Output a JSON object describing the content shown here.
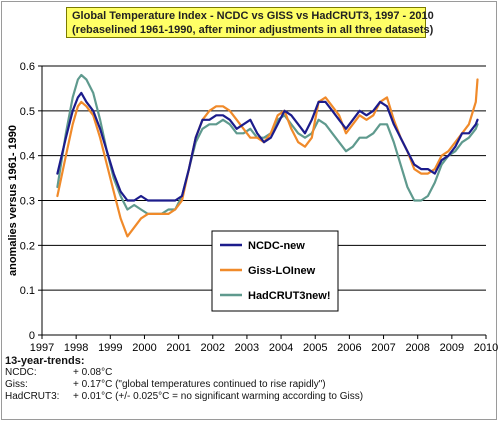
{
  "chart_data": {
    "type": "line",
    "title": "Global Temperature Index - NCDC vs GISS vs HadCRUT3, 1997 -  2010",
    "subtitle": "(rebaselined 1961-1990, after minor adjustments in all three datasets)",
    "xlabel": "",
    "ylabel": "anomalies versus 1961- 1990",
    "xlim": [
      1997,
      2010
    ],
    "ylim": [
      0,
      0.6
    ],
    "x_ticks": [
      "1997",
      "1998",
      "1999",
      "2000",
      "2001",
      "2002",
      "2003",
      "2004",
      "2005",
      "2006",
      "2007",
      "2008",
      "2009",
      "2010"
    ],
    "y_ticks": [
      "0",
      "0.1",
      "0.2",
      "0.3",
      "0.4",
      "0.5",
      "0.6"
    ],
    "grid": "horizontal",
    "legend_position": "center-right",
    "series": [
      {
        "name": "NCDC-new",
        "color": "#1c1c8c",
        "x": [
          1997.45,
          1997.7,
          1997.9,
          1998.05,
          1998.15,
          1998.3,
          1998.5,
          1998.7,
          1998.9,
          1999.1,
          1999.3,
          1999.5,
          1999.7,
          1999.9,
          2000.1,
          2000.3,
          2000.5,
          2000.7,
          2000.9,
          2001.1,
          2001.3,
          2001.5,
          2001.7,
          2001.9,
          2002.1,
          2002.3,
          2002.5,
          2002.7,
          2002.9,
          2003.1,
          2003.3,
          2003.5,
          2003.7,
          2003.9,
          2004.1,
          2004.3,
          2004.5,
          2004.7,
          2004.9,
          2005.1,
          2005.3,
          2005.5,
          2005.7,
          2005.9,
          2006.1,
          2006.3,
          2006.5,
          2006.7,
          2006.9,
          2007.1,
          2007.3,
          2007.5,
          2007.7,
          2007.9,
          2008.1,
          2008.3,
          2008.5,
          2008.7,
          2008.9,
          2009.1,
          2009.3,
          2009.5,
          2009.7,
          2009.75
        ],
        "values": [
          0.36,
          0.44,
          0.5,
          0.53,
          0.54,
          0.52,
          0.5,
          0.46,
          0.41,
          0.36,
          0.32,
          0.3,
          0.3,
          0.31,
          0.3,
          0.3,
          0.3,
          0.3,
          0.3,
          0.31,
          0.37,
          0.44,
          0.48,
          0.48,
          0.49,
          0.49,
          0.48,
          0.46,
          0.47,
          0.48,
          0.45,
          0.43,
          0.44,
          0.47,
          0.5,
          0.49,
          0.47,
          0.45,
          0.48,
          0.52,
          0.52,
          0.5,
          0.48,
          0.46,
          0.48,
          0.5,
          0.49,
          0.5,
          0.52,
          0.51,
          0.47,
          0.44,
          0.41,
          0.38,
          0.37,
          0.37,
          0.36,
          0.39,
          0.4,
          0.42,
          0.45,
          0.45,
          0.47,
          0.48
        ]
      },
      {
        "name": "Giss-LOInew",
        "color": "#f08a2a",
        "x": [
          1997.45,
          1997.7,
          1997.9,
          1998.05,
          1998.15,
          1998.3,
          1998.5,
          1998.7,
          1998.9,
          1999.1,
          1999.3,
          1999.5,
          1999.7,
          1999.9,
          2000.1,
          2000.3,
          2000.5,
          2000.7,
          2000.9,
          2001.1,
          2001.3,
          2001.5,
          2001.7,
          2001.9,
          2002.1,
          2002.3,
          2002.5,
          2002.7,
          2002.9,
          2003.1,
          2003.3,
          2003.5,
          2003.7,
          2003.9,
          2004.1,
          2004.3,
          2004.5,
          2004.7,
          2004.9,
          2005.1,
          2005.3,
          2005.5,
          2005.7,
          2005.9,
          2006.1,
          2006.3,
          2006.5,
          2006.7,
          2006.9,
          2007.1,
          2007.3,
          2007.5,
          2007.7,
          2007.9,
          2008.1,
          2008.3,
          2008.5,
          2008.7,
          2008.9,
          2009.1,
          2009.3,
          2009.5,
          2009.7,
          2009.75
        ],
        "values": [
          0.31,
          0.4,
          0.47,
          0.51,
          0.52,
          0.51,
          0.49,
          0.44,
          0.38,
          0.32,
          0.26,
          0.22,
          0.24,
          0.26,
          0.27,
          0.27,
          0.27,
          0.27,
          0.28,
          0.3,
          0.37,
          0.44,
          0.48,
          0.5,
          0.51,
          0.51,
          0.5,
          0.48,
          0.46,
          0.44,
          0.44,
          0.43,
          0.45,
          0.49,
          0.5,
          0.46,
          0.43,
          0.42,
          0.44,
          0.52,
          0.53,
          0.51,
          0.49,
          0.45,
          0.47,
          0.49,
          0.48,
          0.49,
          0.52,
          0.53,
          0.48,
          0.44,
          0.41,
          0.37,
          0.36,
          0.36,
          0.37,
          0.4,
          0.41,
          0.43,
          0.45,
          0.47,
          0.52,
          0.57
        ]
      },
      {
        "name": "HadCRUT3new!",
        "color": "#5f9a8e",
        "x": [
          1997.45,
          1997.7,
          1997.9,
          1998.05,
          1998.15,
          1998.3,
          1998.5,
          1998.7,
          1998.9,
          1999.1,
          1999.3,
          1999.5,
          1999.7,
          1999.9,
          2000.1,
          2000.3,
          2000.5,
          2000.7,
          2000.9,
          2001.1,
          2001.3,
          2001.5,
          2001.7,
          2001.9,
          2002.1,
          2002.3,
          2002.5,
          2002.7,
          2002.9,
          2003.1,
          2003.3,
          2003.5,
          2003.7,
          2003.9,
          2004.1,
          2004.3,
          2004.5,
          2004.7,
          2004.9,
          2005.1,
          2005.3,
          2005.5,
          2005.7,
          2005.9,
          2006.1,
          2006.3,
          2006.5,
          2006.7,
          2006.9,
          2007.1,
          2007.3,
          2007.5,
          2007.7,
          2007.9,
          2008.1,
          2008.3,
          2008.5,
          2008.7,
          2008.9,
          2009.1,
          2009.3,
          2009.5,
          2009.7,
          2009.75
        ],
        "values": [
          0.33,
          0.45,
          0.53,
          0.57,
          0.58,
          0.57,
          0.54,
          0.48,
          0.41,
          0.35,
          0.31,
          0.28,
          0.29,
          0.28,
          0.27,
          0.27,
          0.27,
          0.28,
          0.28,
          0.31,
          0.37,
          0.43,
          0.46,
          0.47,
          0.47,
          0.48,
          0.47,
          0.45,
          0.45,
          0.46,
          0.44,
          0.44,
          0.45,
          0.48,
          0.49,
          0.47,
          0.45,
          0.44,
          0.45,
          0.48,
          0.47,
          0.45,
          0.43,
          0.41,
          0.42,
          0.44,
          0.44,
          0.45,
          0.47,
          0.47,
          0.43,
          0.38,
          0.33,
          0.3,
          0.3,
          0.31,
          0.34,
          0.38,
          0.4,
          0.41,
          0.43,
          0.44,
          0.46,
          0.47
        ]
      }
    ]
  },
  "trends": {
    "heading": "13-year-trends:",
    "rows": [
      {
        "name": "NCDC:",
        "value": "+ 0.08°C"
      },
      {
        "name": "Giss:",
        "value": "+ 0.17°C (\"global temperatures continued to rise rapidly\")"
      },
      {
        "name": "HadCRUT3:",
        "value": "+ 0.01°C (+/- 0.025°C = no significant warming according to Giss)"
      }
    ]
  }
}
